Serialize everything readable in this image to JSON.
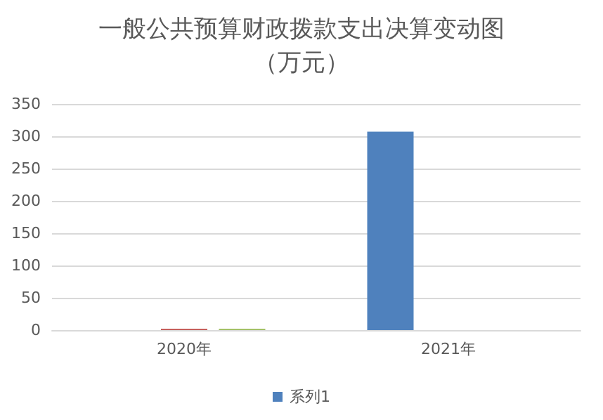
{
  "chart_data": {
    "type": "bar",
    "title": "一般公共预算财政拨款支出决算变动图（万元）",
    "categories": [
      "2020年",
      "2021年"
    ],
    "series": [
      {
        "name": "系列1",
        "color": "#4f81bd",
        "values": [
          0,
          307
        ]
      },
      {
        "color": "#c0504d",
        "values": [
          2,
          0
        ]
      },
      {
        "color": "#9bbb59",
        "values": [
          2,
          0
        ]
      }
    ],
    "ylim": [
      0,
      350
    ],
    "yticks": [
      0,
      50,
      100,
      150,
      200,
      250,
      300,
      350
    ],
    "grid": "y",
    "legend": "bottom"
  }
}
